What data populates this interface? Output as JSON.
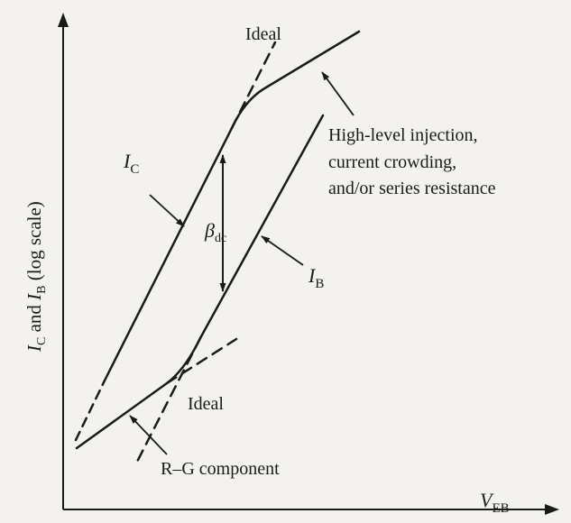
{
  "diagram": {
    "axes": {
      "x_label": {
        "main": "V",
        "sub": "EB"
      },
      "y_label": {
        "part1": "I",
        "sub1": "C",
        "part2": " and ",
        "part3": "I",
        "sub3": "B",
        "part4": " (log scale)"
      }
    },
    "curves": {
      "ic": {
        "main": "I",
        "sub": "C"
      },
      "ib": {
        "main": "I",
        "sub": "B"
      }
    },
    "beta": {
      "main": "β",
      "sub": "dc"
    },
    "ideal_top": "Ideal",
    "ideal_bottom": "Ideal",
    "high_level_lines": [
      "High-level injection,",
      "current crowding,",
      "and/or series resistance"
    ],
    "rg_component": "R–G component",
    "colors": {
      "ink": "#1a1a1a",
      "paper": "#f4f2ef"
    }
  }
}
